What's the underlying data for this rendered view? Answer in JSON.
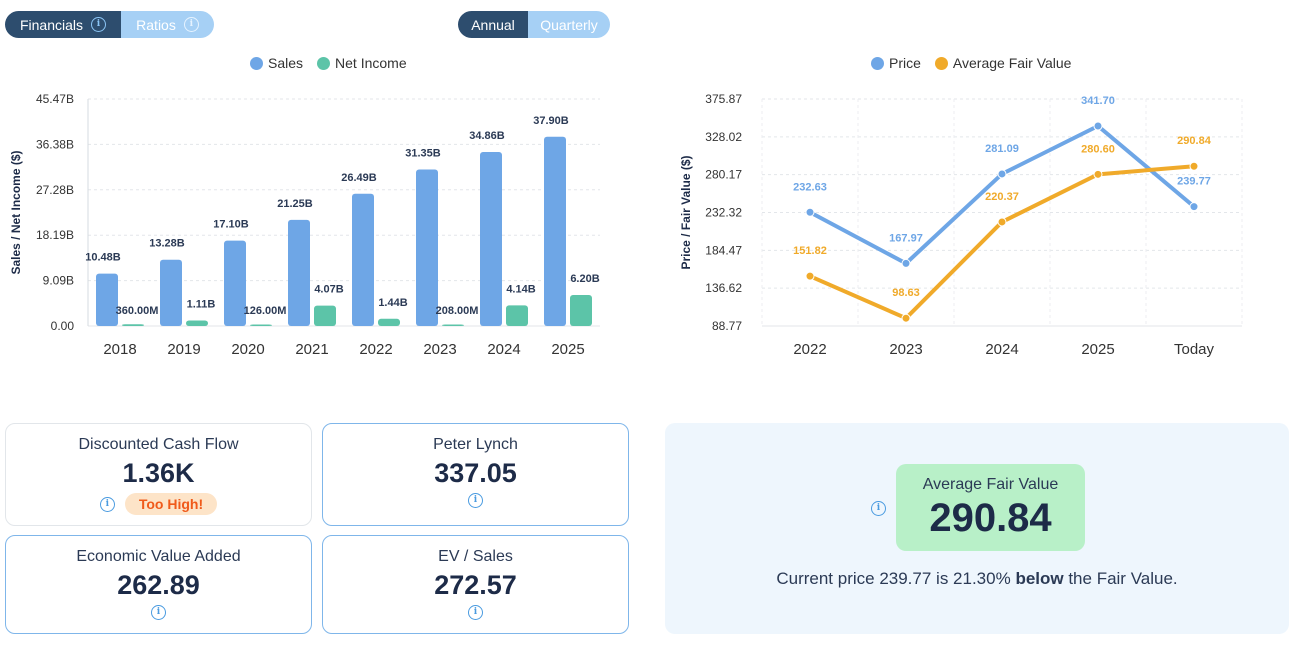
{
  "toggles": {
    "statement": [
      {
        "label": "Financials",
        "active": true
      },
      {
        "label": "Ratios",
        "active": false
      }
    ],
    "period": [
      {
        "label": "Annual",
        "active": true
      },
      {
        "label": "Quarterly",
        "active": false
      }
    ]
  },
  "colors": {
    "sales": "#6ea6e6",
    "net_income": "#5cc4a8",
    "price": "#6ea6e6",
    "fair_value": "#f0aa2a"
  },
  "chart_data": [
    {
      "type": "bar",
      "ylabel": "Sales / Net Income ($)",
      "categories": [
        "2018",
        "2019",
        "2020",
        "2021",
        "2022",
        "2023",
        "2024",
        "2025"
      ],
      "yticks": [
        "0.00",
        "9.09B",
        "18.19B",
        "27.28B",
        "36.38B",
        "45.47B"
      ],
      "ylim": [
        0,
        45.47
      ],
      "legend_position": "top",
      "grid": true,
      "series": [
        {
          "name": "Sales",
          "values": [
            10.48,
            13.28,
            17.1,
            21.25,
            26.49,
            31.35,
            34.86,
            37.9
          ],
          "labels": [
            "10.48B",
            "13.28B",
            "17.10B",
            "21.25B",
            "26.49B",
            "31.35B",
            "34.86B",
            "37.90B"
          ]
        },
        {
          "name": "Net Income",
          "values": [
            0.36,
            1.11,
            0.126,
            4.07,
            1.44,
            0.208,
            4.14,
            6.2
          ],
          "labels": [
            "360.00M",
            "1.11B",
            "126.00M",
            "4.07B",
            "1.44B",
            "208.00M",
            "4.14B",
            "6.20B"
          ]
        }
      ]
    },
    {
      "type": "line",
      "ylabel": "Price / Fair Value ($)",
      "categories": [
        "2022",
        "2023",
        "2024",
        "2025",
        "Today"
      ],
      "yticks": [
        "88.77",
        "136.62",
        "184.47",
        "232.32",
        "280.17",
        "328.02",
        "375.87"
      ],
      "ylim": [
        88.77,
        375.87
      ],
      "legend_position": "top",
      "grid": true,
      "series": [
        {
          "name": "Price",
          "values": [
            232.63,
            167.97,
            281.09,
            341.7,
            239.77
          ],
          "labels": [
            "232.63",
            "167.97",
            "281.09",
            "341.70",
            "239.77"
          ]
        },
        {
          "name": "Average Fair Value",
          "values": [
            151.82,
            98.63,
            220.37,
            280.6,
            290.84
          ],
          "labels": [
            "151.82",
            "98.63",
            "220.37",
            "280.60",
            "290.84"
          ]
        }
      ]
    }
  ],
  "cards": {
    "dcf": {
      "title": "Discounted Cash Flow",
      "value": "1.36K",
      "badge": "Too High!"
    },
    "lynch": {
      "title": "Peter Lynch",
      "value": "337.05"
    },
    "eva": {
      "title": "Economic Value Added",
      "value": "262.89"
    },
    "ev_sales": {
      "title": "EV / Sales",
      "value": "272.57"
    }
  },
  "fair_value": {
    "title": "Average Fair Value",
    "value": "290.84",
    "sentence_pre": "Current price 239.77 is 21.30% ",
    "sentence_bold": "below",
    "sentence_post": " the Fair Value."
  }
}
